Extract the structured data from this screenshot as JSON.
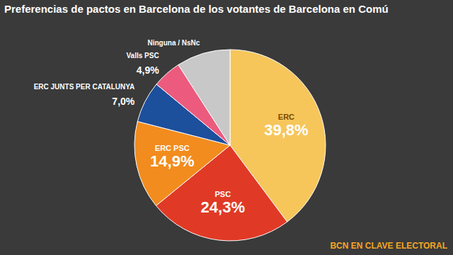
{
  "chart_data": {
    "type": "pie",
    "title": "Preferencias de pactos en Barcelona de los votantes de Barcelona en Comú",
    "categories": [
      "ERC",
      "PSC",
      "ERC PSC",
      "ERC JUNTS PER CATALUNYA",
      "Valls PSC",
      "Ninguna / NsNc"
    ],
    "values": [
      39.8,
      24.3,
      14.9,
      7.0,
      4.9,
      9.1
    ],
    "value_labels": [
      "39,8%",
      "24,3%",
      "14,9%",
      "7,0%",
      "4,9%",
      null
    ],
    "colors": [
      "#f6c65b",
      "#e03a26",
      "#f28c1e",
      "#1c4f9c",
      "#ec5b7e",
      "#c8c8c8"
    ],
    "data_labels": true,
    "annotation": "BCN EN CLAVE ELECTORAL"
  }
}
